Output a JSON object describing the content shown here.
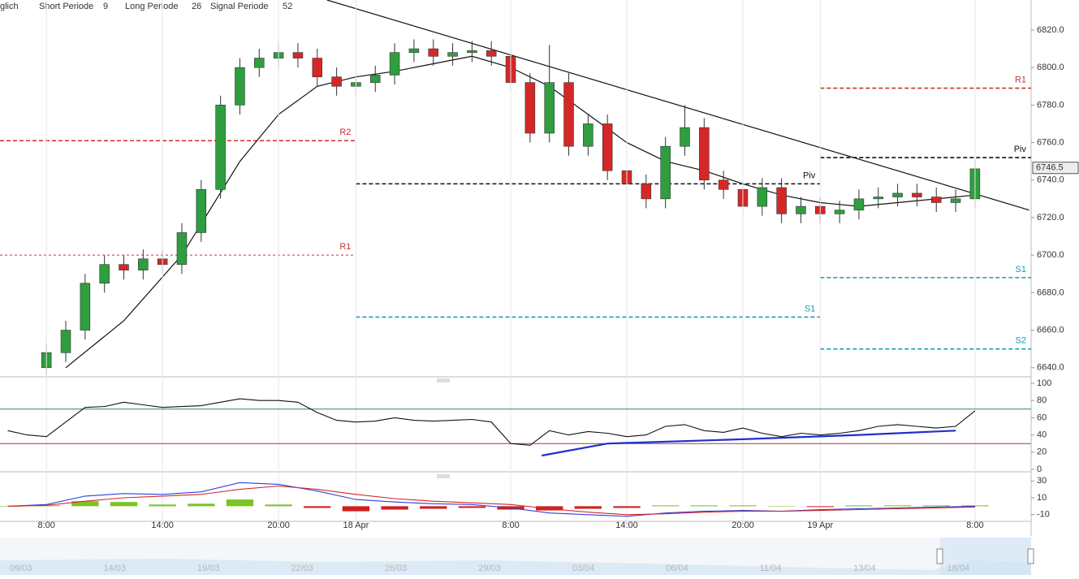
{
  "header": {
    "mode": "glich",
    "params": [
      {
        "label": "Short Periode",
        "value": 9
      },
      {
        "label": "Long Periode",
        "value": 26
      },
      {
        "label": "Signal Periode",
        "value": 52
      }
    ]
  },
  "navigator": {
    "labels": [
      "09/03",
      "14/03",
      "19/03",
      "22/03",
      "26/03",
      "29/03",
      "03/04",
      "06/04",
      "11/04",
      "13/04",
      "18/04"
    ]
  },
  "chart_data": [
    {
      "type": "candlestick",
      "xlim": [
        5.6,
        58.9
      ],
      "ylim": [
        6636,
        6836
      ],
      "grid": true,
      "xticks": [
        {
          "value": 8,
          "label": "8:00"
        },
        {
          "value": 14,
          "label": "14:00"
        },
        {
          "value": 20,
          "label": "20:00"
        },
        {
          "value": 24,
          "label": "18 Apr"
        },
        {
          "value": 32,
          "label": "8:00"
        },
        {
          "value": 38,
          "label": "14:00"
        },
        {
          "value": 44,
          "label": "20:00"
        },
        {
          "value": 48,
          "label": "19 Apr"
        },
        {
          "value": 56,
          "label": "8:00"
        }
      ],
      "yticks": [
        {
          "value": 6820,
          "label": "6820.0"
        },
        {
          "value": 6800,
          "label": "6800.0"
        },
        {
          "value": 6780,
          "label": "6780.0"
        },
        {
          "value": 6760,
          "label": "6760.0"
        },
        {
          "value": 6740,
          "label": "6740.0"
        },
        {
          "value": 6720,
          "label": "6720.0"
        },
        {
          "value": 6700,
          "label": "6700.0"
        },
        {
          "value": 6680,
          "label": "6680.0"
        },
        {
          "value": 6660,
          "label": "6660.0"
        },
        {
          "value": 6640,
          "label": "6640.0"
        }
      ],
      "up_color": "#2e9e3e",
      "down_color": "#d62728",
      "x": [
        8,
        9,
        10,
        11,
        12,
        13,
        14,
        15,
        16,
        17,
        18,
        19,
        20,
        21,
        22,
        23,
        24,
        25,
        26,
        27,
        28,
        29,
        30,
        31,
        32,
        33,
        34,
        35,
        36,
        37,
        38,
        39,
        40,
        41,
        42,
        43,
        44,
        45,
        46,
        47,
        48,
        49,
        50,
        51,
        52,
        53,
        54,
        55,
        56
      ],
      "open": [
        6640,
        6648,
        6660,
        6685,
        6695,
        6692,
        6698,
        6695,
        6712,
        6735,
        6780,
        6800,
        6805,
        6808,
        6805,
        6795,
        6790,
        6792,
        6796,
        6808,
        6810,
        6806,
        6808,
        6809,
        6806,
        6792,
        6765,
        6792,
        6758,
        6770,
        6745,
        6738,
        6730,
        6758,
        6768,
        6740,
        6735,
        6726,
        6736,
        6722,
        6726,
        6722,
        6724,
        6730,
        6731,
        6733,
        6731,
        6728,
        6730
      ],
      "high": [
        6653,
        6665,
        6690,
        6700,
        6700,
        6703,
        6703,
        6717,
        6740,
        6785,
        6805,
        6810,
        6813,
        6813,
        6810,
        6800,
        6797,
        6801,
        6813,
        6815,
        6815,
        6813,
        6814,
        6814,
        6811,
        6797,
        6812,
        6797,
        6775,
        6775,
        6750,
        6743,
        6763,
        6780,
        6773,
        6745,
        6740,
        6741,
        6741,
        6731,
        6731,
        6729,
        6735,
        6736,
        6738,
        6738,
        6736,
        6735,
        6751
      ],
      "low": [
        6635,
        6643,
        6655,
        6680,
        6687,
        6687,
        6690,
        6690,
        6707,
        6730,
        6775,
        6795,
        6800,
        6800,
        6790,
        6785,
        6785,
        6787,
        6791,
        6803,
        6801,
        6801,
        6803,
        6801,
        6787,
        6760,
        6760,
        6753,
        6753,
        6740,
        6733,
        6725,
        6725,
        6753,
        6735,
        6730,
        6721,
        6721,
        6717,
        6717,
        6717,
        6717,
        6719,
        6725,
        6726,
        6726,
        6723,
        6723,
        6725
      ],
      "close": [
        6648,
        6660,
        6685,
        6695,
        6692,
        6698,
        6695,
        6712,
        6735,
        6780,
        6800,
        6805,
        6808,
        6805,
        6795,
        6790,
        6792,
        6796,
        6808,
        6810,
        6806,
        6808,
        6809,
        6806,
        6792,
        6765,
        6792,
        6758,
        6770,
        6745,
        6738,
        6730,
        6758,
        6768,
        6740,
        6735,
        6726,
        6736,
        6722,
        6726,
        6722,
        6724,
        6730,
        6731,
        6733,
        6731,
        6728,
        6730,
        6746
      ],
      "ma": {
        "color": "#111111",
        "x": [
          9,
          12,
          15,
          18,
          20,
          22,
          24,
          26,
          28,
          30,
          32,
          34,
          36,
          38,
          40,
          42,
          44,
          46,
          48,
          50,
          52,
          54,
          56
        ],
        "values": [
          6640,
          6665,
          6700,
          6750,
          6775,
          6790,
          6795,
          6798,
          6802,
          6806,
          6800,
          6790,
          6775,
          6760,
          6750,
          6745,
          6738,
          6732,
          6728,
          6726,
          6728,
          6730,
          6732
        ]
      },
      "trendline": {
        "color": "#111111",
        "x": [
          22.5,
          58.8
        ],
        "y": [
          6836,
          6724
        ]
      },
      "levels": [
        {
          "label": "R2",
          "value": 6761,
          "x": [
            5.6,
            24
          ],
          "color": "#d62728"
        },
        {
          "label": "R1",
          "value": 6700,
          "x": [
            5.6,
            24
          ],
          "color": "#c0392b"
        },
        {
          "label": "Piv",
          "value": 6738,
          "x": [
            24,
            48
          ],
          "color": "#111111"
        },
        {
          "label": "S1",
          "value": 6667,
          "x": [
            24,
            48
          ],
          "color": "#1a9bb5"
        },
        {
          "label": "R1",
          "value": 6789,
          "x": [
            48,
            58.9
          ],
          "color": "#c0392b"
        },
        {
          "label": "Piv",
          "value": 6752,
          "x": [
            48,
            58.9
          ],
          "color": "#111111"
        },
        {
          "label": "S1",
          "value": 6688,
          "x": [
            48,
            58.9
          ],
          "color": "#1a9bb5"
        },
        {
          "label": "S2",
          "value": 6650,
          "x": [
            48,
            58.9
          ],
          "color": "#1a9bb5"
        }
      ],
      "last_price": 6746.5
    },
    {
      "type": "line",
      "ylim": [
        0,
        100
      ],
      "yticks": [
        0,
        20,
        40,
        60,
        80,
        100
      ],
      "reference_lines": [
        {
          "value": 70,
          "color": "#2f7f7f"
        },
        {
          "value": 30,
          "color": "#a33b3b"
        }
      ],
      "x": [
        6,
        7,
        8,
        9,
        10,
        11,
        12,
        13,
        14,
        15,
        16,
        17,
        18,
        19,
        20,
        21,
        22,
        23,
        24,
        25,
        26,
        27,
        28,
        29,
        30,
        31,
        32,
        33,
        34,
        35,
        36,
        37,
        38,
        39,
        40,
        41,
        42,
        43,
        44,
        45,
        46,
        47,
        48,
        49,
        50,
        51,
        52,
        53,
        54,
        55,
        56
      ],
      "series": [
        {
          "color": "#111111",
          "values": [
            45,
            40,
            38,
            55,
            72,
            73,
            78,
            75,
            72,
            73,
            74,
            78,
            82,
            80,
            80,
            78,
            66,
            57,
            55,
            56,
            60,
            57,
            56,
            57,
            58,
            55,
            30,
            28,
            45,
            40,
            44,
            42,
            38,
            40,
            50,
            52,
            45,
            43,
            48,
            42,
            38,
            42,
            40,
            42,
            45,
            50,
            52,
            50,
            48,
            50,
            68
          ]
        }
      ],
      "trend": {
        "color": "#1f2fcf",
        "x": [
          33.6,
          37,
          44,
          50,
          55
        ],
        "values": [
          16,
          30,
          35,
          40,
          45
        ]
      }
    },
    {
      "type": "line",
      "ylim": [
        -16,
        36
      ],
      "yticks": [
        30,
        10,
        -10
      ],
      "x": [
        6,
        8,
        10,
        12,
        14,
        16,
        18,
        20,
        22,
        24,
        26,
        28,
        30,
        32,
        34,
        36,
        38,
        40,
        42,
        44,
        46,
        48,
        50,
        52,
        54,
        56
      ],
      "series": [
        {
          "color": "#2f3fdf",
          "values": [
            0,
            2,
            12,
            15,
            14,
            17,
            28,
            26,
            18,
            8,
            5,
            3,
            2,
            -2,
            -8,
            -10,
            -12,
            -8,
            -6,
            -5,
            -6,
            -4,
            -3,
            -2,
            -1,
            0
          ]
        },
        {
          "color": "#d62728",
          "values": [
            0,
            1,
            6,
            10,
            12,
            14,
            20,
            24,
            20,
            14,
            9,
            6,
            4,
            2,
            -3,
            -7,
            -10,
            -9,
            -7,
            -6,
            -6,
            -5,
            -4,
            -3,
            -2,
            -1
          ]
        }
      ],
      "bars": [
        0,
        1,
        6,
        5,
        2,
        3,
        8,
        2,
        -2,
        -6,
        -4,
        -3,
        -2,
        -4,
        -5,
        -3,
        -2,
        1,
        1,
        1,
        0,
        -1,
        1,
        1,
        1,
        1
      ],
      "bar_colors": {
        "positive": "#7cc423",
        "negative": "#d0201d"
      }
    }
  ]
}
